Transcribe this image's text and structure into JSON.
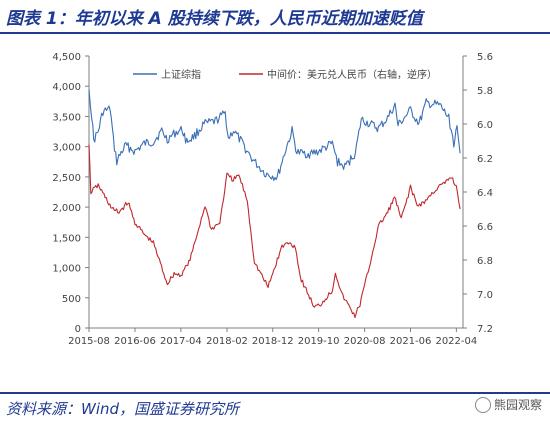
{
  "header": {
    "title": "图表 1：年初以来 A 股持续下跌，人民币近期加速贬值"
  },
  "footer": {
    "source": "资料来源：Wind，国盛证券研究所",
    "watermark": "熊园观察"
  },
  "colors": {
    "brand": "#1f3a93",
    "series1": "#3a6fb7",
    "series2": "#c0282c",
    "axis": "#7f7f7f",
    "text": "#444444"
  },
  "chart_data": {
    "type": "line",
    "x_range": [
      "2015-08-01",
      "2022-05-15"
    ],
    "x_ticks": [
      {
        "date": "2015-08-01",
        "label": "2015-08"
      },
      {
        "date": "2016-06-01",
        "label": "2016-06"
      },
      {
        "date": "2017-04-01",
        "label": "2017-04"
      },
      {
        "date": "2018-02-01",
        "label": "2018-02"
      },
      {
        "date": "2018-12-01",
        "label": "2018-12"
      },
      {
        "date": "2019-10-01",
        "label": "2019-10"
      },
      {
        "date": "2020-08-01",
        "label": "2020-08"
      },
      {
        "date": "2021-06-01",
        "label": "2021-06"
      },
      {
        "date": "2022-04-01",
        "label": "2022-04"
      }
    ],
    "y_left": {
      "min": 0,
      "max": 4500,
      "ticks": [
        "0",
        "500",
        "1,000",
        "1,500",
        "2,000",
        "2,500",
        "3,000",
        "3,500",
        "4,000",
        "4,500"
      ]
    },
    "y_right": {
      "min": 5.6,
      "max": 7.2,
      "reversed": true,
      "ticks": [
        "5.6",
        "5.8",
        "6.0",
        "6.2",
        "6.4",
        "6.6",
        "6.8",
        "7.0",
        "7.2"
      ]
    },
    "legend_position": "top",
    "series": [
      {
        "name": "上证综指",
        "axis": "left",
        "points": [
          [
            "2015-08-01",
            3950
          ],
          [
            "2015-08-20",
            3500
          ],
          [
            "2015-09-01",
            3100
          ],
          [
            "2015-10-01",
            3250
          ],
          [
            "2015-11-01",
            3580
          ],
          [
            "2015-12-20",
            3620
          ],
          [
            "2016-01-10",
            3100
          ],
          [
            "2016-02-01",
            2750
          ],
          [
            "2016-03-01",
            2900
          ],
          [
            "2016-04-01",
            3020
          ],
          [
            "2016-06-01",
            2920
          ],
          [
            "2016-08-01",
            3050
          ],
          [
            "2016-10-01",
            3080
          ],
          [
            "2016-11-25",
            3260
          ],
          [
            "2017-01-01",
            3120
          ],
          [
            "2017-03-01",
            3240
          ],
          [
            "2017-04-10",
            3280
          ],
          [
            "2017-05-10",
            3080
          ],
          [
            "2017-07-01",
            3180
          ],
          [
            "2017-09-01",
            3370
          ],
          [
            "2017-11-15",
            3420
          ],
          [
            "2018-01-20",
            3560
          ],
          [
            "2018-02-10",
            3130
          ],
          [
            "2018-03-15",
            3270
          ],
          [
            "2018-05-01",
            3100
          ],
          [
            "2018-06-20",
            2900
          ],
          [
            "2018-08-01",
            2750
          ],
          [
            "2018-10-15",
            2550
          ],
          [
            "2018-12-31",
            2490
          ],
          [
            "2019-02-25",
            2950
          ],
          [
            "2019-04-08",
            3260
          ],
          [
            "2019-05-10",
            2900
          ],
          [
            "2019-08-01",
            2880
          ],
          [
            "2019-10-01",
            2920
          ],
          [
            "2019-12-31",
            3050
          ],
          [
            "2020-02-03",
            2750
          ],
          [
            "2020-03-23",
            2660
          ],
          [
            "2020-06-01",
            2900
          ],
          [
            "2020-07-10",
            3450
          ],
          [
            "2020-09-01",
            3380
          ],
          [
            "2020-11-01",
            3300
          ],
          [
            "2020-12-31",
            3470
          ],
          [
            "2021-02-18",
            3690
          ],
          [
            "2021-03-10",
            3350
          ],
          [
            "2021-06-01",
            3600
          ],
          [
            "2021-07-28",
            3380
          ],
          [
            "2021-09-13",
            3720
          ],
          [
            "2021-12-13",
            3680
          ],
          [
            "2022-01-05",
            3600
          ],
          [
            "2022-02-10",
            3470
          ],
          [
            "2022-03-15",
            3060
          ],
          [
            "2022-04-05",
            3280
          ],
          [
            "2022-04-26",
            2890
          ]
        ]
      },
      {
        "name": "中间价：美元兑人民币（右轴，逆序）",
        "axis": "right",
        "points": [
          [
            "2015-08-01",
            6.12
          ],
          [
            "2015-08-13",
            6.4
          ],
          [
            "2015-10-01",
            6.36
          ],
          [
            "2016-01-01",
            6.5
          ],
          [
            "2016-02-15",
            6.52
          ],
          [
            "2016-04-15",
            6.46
          ],
          [
            "2016-06-01",
            6.58
          ],
          [
            "2016-08-01",
            6.65
          ],
          [
            "2016-10-01",
            6.7
          ],
          [
            "2016-11-01",
            6.78
          ],
          [
            "2017-01-01",
            6.94
          ],
          [
            "2017-02-15",
            6.88
          ],
          [
            "2017-04-01",
            6.89
          ],
          [
            "2017-06-01",
            6.8
          ],
          [
            "2017-09-08",
            6.48
          ],
          [
            "2017-10-20",
            6.62
          ],
          [
            "2017-12-15",
            6.58
          ],
          [
            "2018-02-01",
            6.3
          ],
          [
            "2018-03-15",
            6.33
          ],
          [
            "2018-04-20",
            6.3
          ],
          [
            "2018-06-15",
            6.45
          ],
          [
            "2018-08-01",
            6.81
          ],
          [
            "2018-10-31",
            6.96
          ],
          [
            "2019-01-31",
            6.72
          ],
          [
            "2019-03-15",
            6.7
          ],
          [
            "2019-04-30",
            6.72
          ],
          [
            "2019-06-01",
            6.9
          ],
          [
            "2019-09-03",
            7.08
          ],
          [
            "2019-10-15",
            7.06
          ],
          [
            "2019-12-31",
            6.98
          ],
          [
            "2020-01-20",
            6.87
          ],
          [
            "2020-03-01",
            7.0
          ],
          [
            "2020-05-29",
            7.13
          ],
          [
            "2020-07-01",
            7.06
          ],
          [
            "2020-09-01",
            6.84
          ],
          [
            "2020-11-01",
            6.6
          ],
          [
            "2021-01-01",
            6.52
          ],
          [
            "2021-02-15",
            6.43
          ],
          [
            "2021-04-01",
            6.56
          ],
          [
            "2021-06-01",
            6.37
          ],
          [
            "2021-07-15",
            6.48
          ],
          [
            "2021-09-01",
            6.46
          ],
          [
            "2021-12-01",
            6.37
          ],
          [
            "2022-01-15",
            6.35
          ],
          [
            "2022-02-28",
            6.31
          ],
          [
            "2022-04-01",
            6.37
          ],
          [
            "2022-04-26",
            6.5
          ]
        ]
      }
    ]
  }
}
